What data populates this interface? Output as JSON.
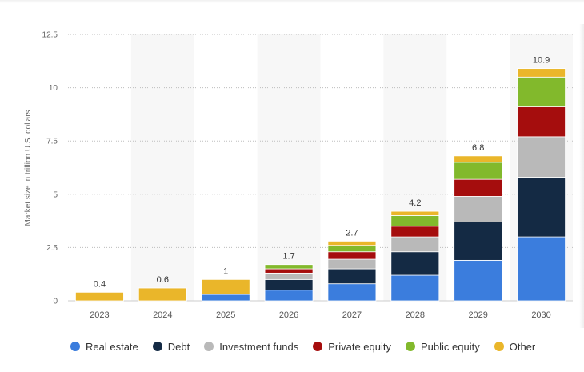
{
  "chart_data": {
    "type": "bar",
    "stacked": true,
    "categories": [
      "2023",
      "2024",
      "2025",
      "2026",
      "2027",
      "2028",
      "2029",
      "2030"
    ],
    "series": [
      {
        "name": "Real estate",
        "color": "#3b7ddd",
        "values": [
          0,
          0,
          0.3,
          0.5,
          0.8,
          1.2,
          1.9,
          3.0
        ]
      },
      {
        "name": "Debt",
        "color": "#142a44",
        "values": [
          0,
          0,
          0,
          0.5,
          0.7,
          1.1,
          1.8,
          2.8
        ]
      },
      {
        "name": "Investment funds",
        "color": "#b9b9b9",
        "values": [
          0,
          0,
          0,
          0.3,
          0.45,
          0.7,
          1.2,
          1.9
        ]
      },
      {
        "name": "Private equity",
        "color": "#a50d0d",
        "values": [
          0,
          0,
          0,
          0.2,
          0.35,
          0.5,
          0.8,
          1.4
        ]
      },
      {
        "name": "Public equity",
        "color": "#82b92c",
        "values": [
          0,
          0,
          0,
          0.2,
          0.3,
          0.5,
          0.8,
          1.4
        ]
      },
      {
        "name": "Other",
        "color": "#eab62a",
        "values": [
          0.4,
          0.6,
          0.7,
          0,
          0.2,
          0.2,
          0.3,
          0.4
        ]
      }
    ],
    "totals": [
      "0.4",
      "0.6",
      "1",
      "1.7",
      "2.7",
      "4.2",
      "6.8",
      "10.9"
    ],
    "ylabel": "Market size in trillion U.S. dollars",
    "ylim": [
      0,
      12.5
    ],
    "yticks": [
      "0",
      "2.5",
      "5",
      "7.5",
      "10",
      "12.5"
    ],
    "grid": true,
    "legend_position": "bottom-left"
  }
}
